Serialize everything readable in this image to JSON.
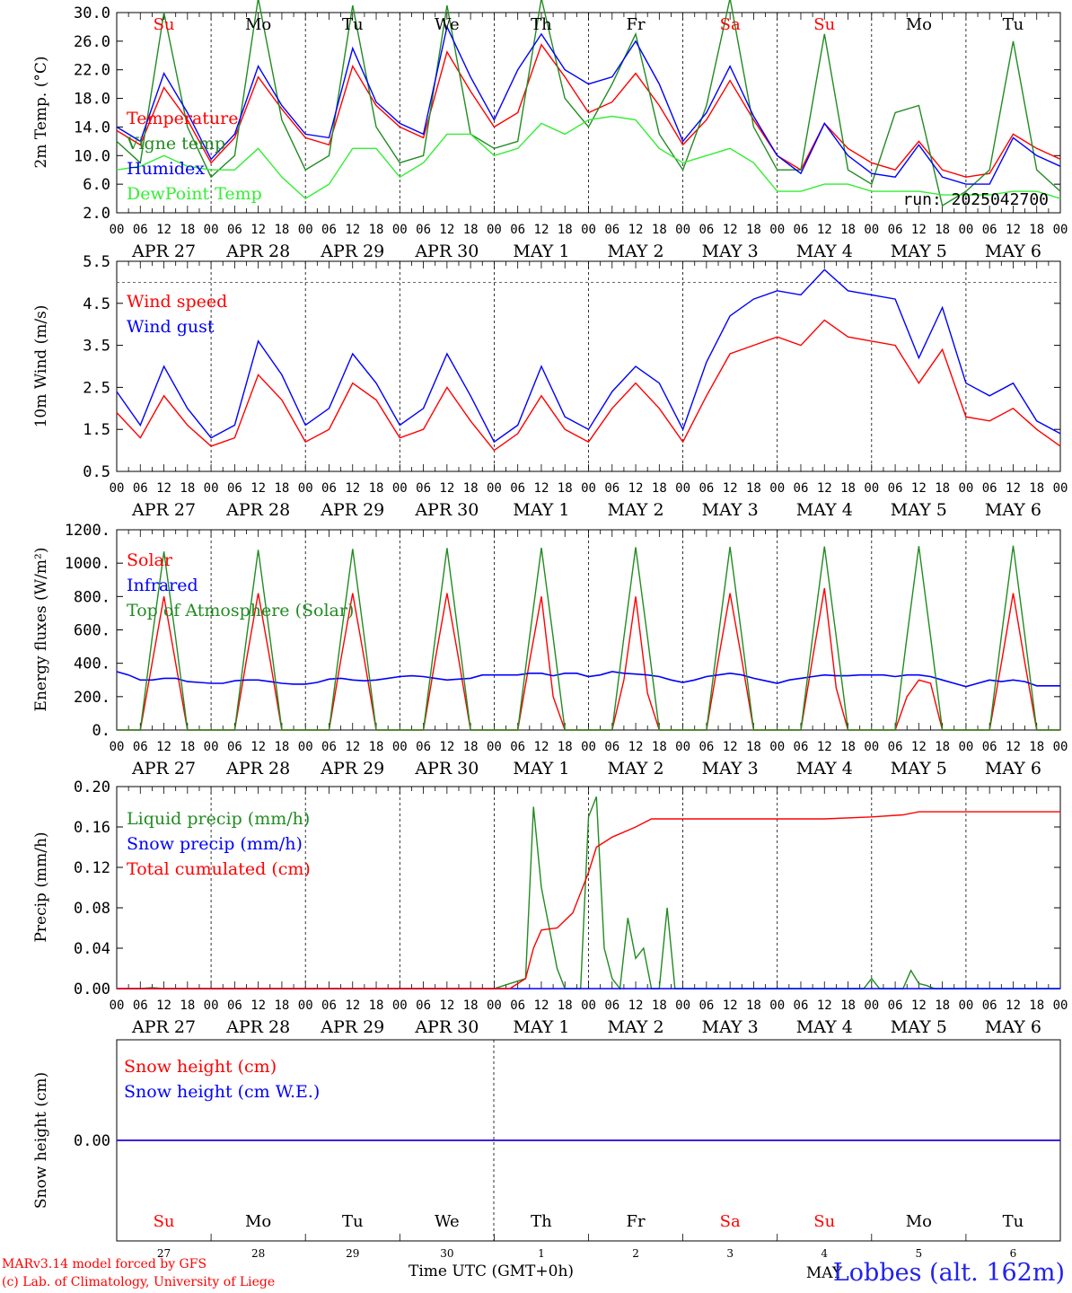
{
  "chart_data": [
    {
      "type": "line",
      "ylabel": "2m Temp. (°C)",
      "ylim": [
        2.0,
        30.0
      ],
      "yticks": [
        "2.0",
        "6.0",
        "10.0",
        "14.0",
        "18.0",
        "22.0",
        "26.0",
        "30.0"
      ],
      "annotation": "run: 2025042700",
      "x_hours": [
        0,
        6,
        12,
        18,
        24,
        30,
        36,
        42,
        48,
        54,
        60,
        66,
        72,
        78,
        84,
        90,
        96,
        102,
        108,
        114,
        120,
        126,
        132,
        138,
        144,
        150,
        156,
        162,
        168,
        174,
        180,
        186,
        192,
        198,
        204,
        210,
        216,
        222,
        228,
        234,
        240
      ],
      "series": [
        {
          "name": "Temperature",
          "color": "#ff0000",
          "values": [
            13.5,
            11.5,
            19.5,
            15,
            9,
            12.5,
            21,
            16.5,
            12.5,
            11.5,
            22.5,
            17,
            14,
            12.5,
            24.5,
            19,
            14,
            16,
            25.5,
            21,
            16,
            17.5,
            21.5,
            17,
            11.5,
            15,
            20.5,
            15,
            10,
            8,
            14.5,
            11,
            9,
            8,
            12,
            8,
            7,
            7.5,
            13,
            11,
            9.5
          ]
        },
        {
          "name": "Vigne temp",
          "color": "#228b22",
          "values": [
            12,
            9,
            30,
            14,
            7,
            10,
            32,
            15,
            8,
            10,
            31,
            14,
            9,
            10,
            31,
            13,
            11,
            12,
            32,
            18,
            14,
            20,
            27,
            13,
            8,
            17,
            32,
            14,
            8,
            8,
            27,
            8,
            6,
            16,
            17,
            3,
            5,
            8,
            26,
            8,
            5
          ]
        },
        {
          "name": "Humidex",
          "color": "#0000ff",
          "values": [
            14,
            12,
            21.5,
            16,
            9.5,
            13,
            22.5,
            17,
            13,
            12.5,
            25,
            17.5,
            14.5,
            13,
            28,
            21,
            15,
            22,
            27,
            22,
            20,
            21,
            26,
            20,
            12,
            16,
            22.5,
            15.5,
            10,
            7.5,
            14.5,
            10,
            7.5,
            7,
            11.5,
            7,
            6,
            6,
            12.5,
            10,
            8.5
          ]
        },
        {
          "name": "DewPoint Temp",
          "color": "#33ee33",
          "values": [
            8,
            8.5,
            10,
            8.5,
            8,
            8,
            11,
            7,
            4,
            6,
            11,
            11,
            7,
            9,
            13,
            13,
            10,
            11,
            14.5,
            13,
            15,
            15.5,
            15,
            11,
            9,
            10,
            11,
            9,
            5,
            5,
            6,
            6,
            5,
            5,
            5,
            4.5,
            4.5,
            4.5,
            5,
            5,
            4
          ]
        }
      ]
    },
    {
      "type": "line",
      "ylabel": "10m Wind (m/s)",
      "ylim": [
        0.5,
        5.5
      ],
      "yticks": [
        "0.5",
        "1.5",
        "2.5",
        "3.5",
        "4.5",
        "5.5"
      ],
      "reference_line": 5.0,
      "x_hours": [
        0,
        6,
        12,
        18,
        24,
        30,
        36,
        42,
        48,
        54,
        60,
        66,
        72,
        78,
        84,
        90,
        96,
        102,
        108,
        114,
        120,
        126,
        132,
        138,
        144,
        150,
        156,
        162,
        168,
        174,
        180,
        186,
        192,
        198,
        204,
        210,
        216,
        222,
        228,
        234,
        240
      ],
      "series": [
        {
          "name": "Wind speed",
          "color": "#ff0000",
          "values": [
            1.9,
            1.3,
            2.3,
            1.6,
            1.1,
            1.3,
            2.8,
            2.2,
            1.2,
            1.5,
            2.6,
            2.2,
            1.3,
            1.5,
            2.5,
            1.7,
            1.0,
            1.4,
            2.3,
            1.5,
            1.2,
            2.0,
            2.6,
            2.0,
            1.2,
            2.3,
            3.3,
            3.5,
            3.7,
            3.5,
            4.1,
            3.7,
            3.6,
            3.5,
            2.6,
            3.4,
            1.8,
            1.7,
            2.0,
            1.5,
            1.1
          ]
        },
        {
          "name": "Wind gust",
          "color": "#0000ff",
          "values": [
            2.4,
            1.6,
            3.0,
            2.0,
            1.3,
            1.6,
            3.6,
            2.8,
            1.6,
            2.0,
            3.3,
            2.6,
            1.6,
            2.0,
            3.3,
            2.3,
            1.2,
            1.6,
            3.0,
            1.8,
            1.5,
            2.4,
            3.0,
            2.6,
            1.5,
            3.1,
            4.2,
            4.6,
            4.8,
            4.7,
            5.3,
            4.8,
            4.7,
            4.6,
            3.2,
            4.4,
            2.6,
            2.3,
            2.6,
            1.7,
            1.4
          ]
        }
      ]
    },
    {
      "type": "line",
      "ylabel": "Energy fluxes (W/m²)",
      "ylim": [
        0,
        1200
      ],
      "yticks": [
        "0.",
        "200.",
        "400.",
        "600.",
        "800.",
        "1000.",
        "1200."
      ],
      "x_hours": [
        0,
        3,
        6,
        9,
        12,
        15,
        18,
        21,
        24,
        27,
        30,
        33,
        36,
        39,
        42,
        45,
        48,
        51,
        54,
        57,
        60,
        63,
        66,
        69,
        72,
        75,
        78,
        81,
        84,
        87,
        90,
        93,
        96,
        99,
        102,
        105,
        108,
        111,
        114,
        117,
        120,
        123,
        126,
        129,
        132,
        135,
        138,
        141,
        144,
        147,
        150,
        153,
        156,
        159,
        162,
        165,
        168,
        171,
        174,
        177,
        180,
        183,
        186,
        189,
        192,
        195,
        198,
        201,
        204,
        207,
        210,
        213,
        216,
        219,
        222,
        225,
        228,
        231,
        234,
        237,
        240
      ],
      "series": [
        {
          "name": "Solar",
          "color": "#ff0000",
          "values": [
            0,
            0,
            0,
            400,
            800,
            400,
            0,
            0,
            0,
            0,
            0,
            420,
            820,
            420,
            0,
            0,
            0,
            0,
            0,
            420,
            820,
            420,
            0,
            0,
            0,
            0,
            0,
            420,
            820,
            420,
            0,
            0,
            0,
            0,
            0,
            410,
            800,
            200,
            0,
            0,
            0,
            0,
            0,
            300,
            800,
            220,
            0,
            0,
            0,
            0,
            0,
            420,
            820,
            420,
            0,
            0,
            0,
            0,
            0,
            430,
            850,
            250,
            0,
            0,
            0,
            0,
            0,
            200,
            300,
            280,
            0,
            0,
            0,
            0,
            0,
            400,
            820,
            400,
            0,
            0,
            0
          ]
        },
        {
          "name": "Infrared",
          "color": "#0000ff",
          "values": [
            350,
            330,
            300,
            300,
            310,
            310,
            290,
            285,
            280,
            280,
            295,
            300,
            300,
            290,
            280,
            275,
            275,
            285,
            305,
            310,
            300,
            295,
            300,
            310,
            320,
            325,
            320,
            310,
            300,
            305,
            310,
            330,
            330,
            330,
            330,
            340,
            340,
            325,
            340,
            340,
            320,
            330,
            350,
            340,
            335,
            330,
            320,
            300,
            285,
            300,
            320,
            330,
            340,
            330,
            310,
            295,
            280,
            300,
            310,
            320,
            330,
            325,
            325,
            330,
            330,
            330,
            320,
            330,
            330,
            320,
            300,
            280,
            260,
            280,
            300,
            290,
            300,
            290,
            265,
            265,
            265
          ]
        },
        {
          "name": "Top of Atmosphere (Solar)",
          "color": "#228b22",
          "values": [
            0,
            0,
            0,
            550,
            1070,
            550,
            0,
            0,
            0,
            0,
            0,
            550,
            1080,
            550,
            0,
            0,
            0,
            0,
            0,
            550,
            1085,
            550,
            0,
            0,
            0,
            0,
            0,
            550,
            1090,
            550,
            0,
            0,
            0,
            0,
            0,
            555,
            1092,
            555,
            0,
            0,
            0,
            0,
            0,
            556,
            1095,
            556,
            0,
            0,
            0,
            0,
            0,
            557,
            1098,
            557,
            0,
            0,
            0,
            0,
            0,
            558,
            1100,
            558,
            0,
            0,
            0,
            0,
            0,
            559,
            1102,
            559,
            0,
            0,
            0,
            0,
            0,
            560,
            1105,
            560,
            0,
            0,
            0
          ]
        }
      ]
    },
    {
      "type": "line",
      "ylabel": "Precip (mm/h)",
      "ylim": [
        0,
        0.2
      ],
      "yticks": [
        "0.00",
        "0.04",
        "0.08",
        "0.12",
        "0.16",
        "0.20"
      ],
      "series": [
        {
          "name": "Liquid precip (mm/h)",
          "color": "#228b22",
          "x": [
            0,
            6,
            9,
            12,
            96,
            104,
            106,
            108,
            112,
            114,
            118,
            120,
            122,
            124,
            126,
            128,
            130,
            132,
            134,
            136,
            138,
            140,
            142,
            144,
            190,
            192,
            194,
            200,
            202,
            204,
            206,
            208,
            240
          ],
          "values": [
            0,
            0,
            0.001,
            0,
            0,
            0.01,
            0.18,
            0.1,
            0.02,
            0,
            0,
            0.17,
            0.19,
            0.04,
            0.01,
            0,
            0.07,
            0.03,
            0.04,
            0,
            0,
            0.08,
            0,
            0,
            0,
            0.01,
            0,
            0,
            0.018,
            0.005,
            0.003,
            0,
            0
          ]
        },
        {
          "name": "Snow precip (mm/h)",
          "color": "#0000ff",
          "x": [
            0,
            240
          ],
          "values": [
            0,
            0
          ]
        },
        {
          "name": "Total cumulated (cm)",
          "color": "#ff0000",
          "x": [
            0,
            100,
            104,
            106,
            108,
            110,
            112,
            116,
            120,
            122,
            126,
            132,
            136,
            140,
            144,
            180,
            192,
            200,
            204,
            240
          ],
          "values": [
            0,
            0,
            0.01,
            0.04,
            0.058,
            0.059,
            0.06,
            0.075,
            0.115,
            0.14,
            0.15,
            0.16,
            0.168,
            0.168,
            0.168,
            0.168,
            0.17,
            0.172,
            0.175,
            0.175
          ]
        }
      ]
    },
    {
      "type": "line",
      "ylabel": "Snow height (cm)",
      "yticks": [
        "0.00"
      ],
      "series": [
        {
          "name": "Snow height (cm)",
          "color": "#ff0000",
          "x": [
            0,
            240
          ],
          "values": [
            0,
            0
          ]
        },
        {
          "name": "Snow height (cm W.E.)",
          "color": "#0000ff",
          "x": [
            0,
            240
          ],
          "values": [
            0,
            0
          ]
        }
      ]
    }
  ],
  "axis": {
    "hour_ticks": [
      "00",
      "06",
      "12",
      "18"
    ],
    "final_tick": "00",
    "dates": [
      "APR 27",
      "APR 28",
      "APR 29",
      "APR 30",
      "MAY  1",
      "MAY  2",
      "MAY  3",
      "MAY  4",
      "MAY  5",
      "MAY  6"
    ],
    "weekdays": [
      {
        "label": "Su",
        "color": "#ff0000"
      },
      {
        "label": "Mo",
        "color": "#000000"
      },
      {
        "label": "Tu",
        "color": "#000000"
      },
      {
        "label": "We",
        "color": "#000000"
      },
      {
        "label": "Th",
        "color": "#000000"
      },
      {
        "label": "Fr",
        "color": "#000000"
      },
      {
        "label": "Sa",
        "color": "#ff0000"
      },
      {
        "label": "Su",
        "color": "#ff0000"
      },
      {
        "label": "Mo",
        "color": "#000000"
      },
      {
        "label": "Tu",
        "color": "#000000"
      }
    ],
    "day_numbers": [
      "27",
      "28",
      "29",
      "30",
      "1",
      "2",
      "3",
      "4",
      "5",
      "6"
    ],
    "month_label": "MAY"
  },
  "footer": {
    "model": "MARv3.14 model forced by GFS",
    "copyright": "(c) Lab. of Climatology, University of Liege",
    "time_label": "Time UTC (GMT+0h)",
    "station": "Lobbes (alt. 162m)"
  }
}
